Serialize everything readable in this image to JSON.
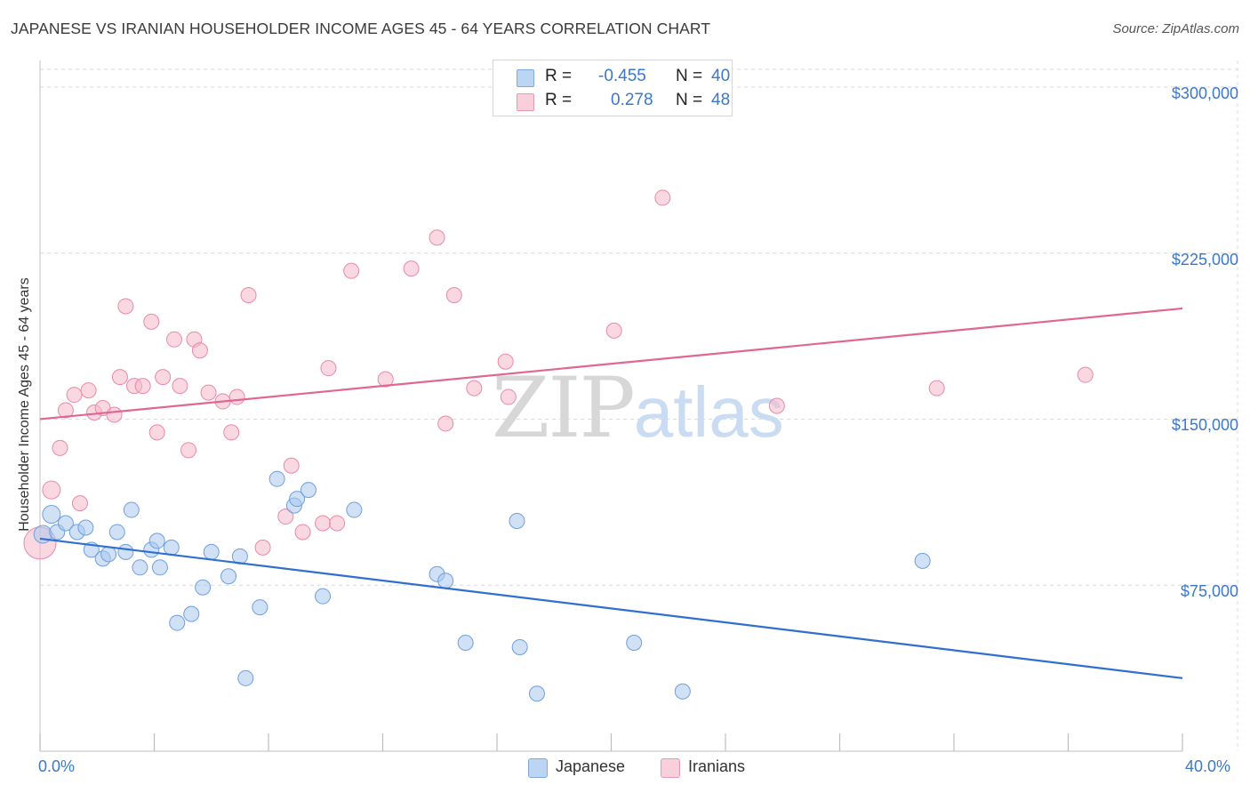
{
  "header": {
    "title": "JAPANESE VS IRANIAN HOUSEHOLDER INCOME AGES 45 - 64 YEARS CORRELATION CHART",
    "source": "Source: ZipAtlas.com"
  },
  "watermark": {
    "zip": "ZIP",
    "atlas": "atlas"
  },
  "legend": {
    "japanese": {
      "r_label": "R = ",
      "r_value": "-0.455",
      "n_label": "N = ",
      "n_value": "40",
      "color": "#a9c8ef"
    },
    "iranians": {
      "r_label": "R = ",
      "r_value": "0.278",
      "n_label": "N = ",
      "n_value": "48",
      "color": "#f5b8cb"
    }
  },
  "bottom_legend": {
    "japanese": "Japanese",
    "iranians": "Iranians"
  },
  "colors": {
    "japanese_fill": "#a9c8ef",
    "japanese_stroke": "#6f9fdc",
    "japanese_line": "#2f6fd0",
    "iranians_fill": "#f5b8cb",
    "iranians_stroke": "#e88aa7",
    "iranians_line": "#e0678f",
    "axis_text": "#3a78c9",
    "grid": "#d9d9d9"
  },
  "chart_data": {
    "type": "scatter",
    "title": "JAPANESE VS IRANIAN HOUSEHOLDER INCOME AGES 45 - 64 YEARS CORRELATION CHART",
    "xlabel": "",
    "ylabel": "Householder Income Ages 45 - 64 years",
    "x_unit": "%",
    "xlim": [
      0,
      40
    ],
    "ylim": [
      0,
      308000
    ],
    "x_tick_labels": [
      "0.0%",
      "40.0%"
    ],
    "y_ticks": [
      75000,
      150000,
      225000,
      300000
    ],
    "y_tick_labels": [
      "$75,000",
      "$150,000",
      "$225,000",
      "$300,000"
    ],
    "grid": true,
    "legend_position": "top-center",
    "series": [
      {
        "name": "Japanese",
        "r": -0.455,
        "n": 40,
        "trend": {
          "x": [
            0,
            40
          ],
          "y": [
            96000,
            33000
          ]
        },
        "points": [
          [
            0.1,
            98000
          ],
          [
            0.4,
            107000
          ],
          [
            0.6,
            99000
          ],
          [
            0.9,
            103000
          ],
          [
            1.3,
            99000
          ],
          [
            1.6,
            101000
          ],
          [
            1.8,
            91000
          ],
          [
            2.2,
            87000
          ],
          [
            2.4,
            89000
          ],
          [
            2.7,
            99000
          ],
          [
            3.0,
            90000
          ],
          [
            3.2,
            109000
          ],
          [
            3.5,
            83000
          ],
          [
            3.9,
            91000
          ],
          [
            4.1,
            95000
          ],
          [
            4.2,
            83000
          ],
          [
            4.6,
            92000
          ],
          [
            4.8,
            58000
          ],
          [
            5.3,
            62000
          ],
          [
            5.7,
            74000
          ],
          [
            6.0,
            90000
          ],
          [
            6.6,
            79000
          ],
          [
            7.0,
            88000
          ],
          [
            7.2,
            33000
          ],
          [
            7.7,
            65000
          ],
          [
            8.3,
            123000
          ],
          [
            8.9,
            111000
          ],
          [
            9.0,
            114000
          ],
          [
            9.4,
            118000
          ],
          [
            9.9,
            70000
          ],
          [
            11.0,
            109000
          ],
          [
            13.9,
            80000
          ],
          [
            14.2,
            77000
          ],
          [
            14.9,
            49000
          ],
          [
            16.7,
            104000
          ],
          [
            16.8,
            47000
          ],
          [
            17.4,
            26000
          ],
          [
            20.8,
            49000
          ],
          [
            22.5,
            27000
          ],
          [
            30.9,
            86000
          ]
        ]
      },
      {
        "name": "Iranians",
        "r": 0.278,
        "n": 48,
        "trend": {
          "x": [
            0,
            40
          ],
          "y": [
            150000,
            200000
          ]
        },
        "points": [
          [
            0.0,
            94000
          ],
          [
            0.4,
            118000
          ],
          [
            0.7,
            137000
          ],
          [
            0.9,
            154000
          ],
          [
            1.2,
            161000
          ],
          [
            1.4,
            112000
          ],
          [
            1.7,
            163000
          ],
          [
            1.9,
            153000
          ],
          [
            2.2,
            155000
          ],
          [
            2.6,
            152000
          ],
          [
            2.8,
            169000
          ],
          [
            3.0,
            201000
          ],
          [
            3.3,
            165000
          ],
          [
            3.6,
            165000
          ],
          [
            3.9,
            194000
          ],
          [
            4.1,
            144000
          ],
          [
            4.3,
            169000
          ],
          [
            4.7,
            186000
          ],
          [
            4.9,
            165000
          ],
          [
            5.2,
            136000
          ],
          [
            5.4,
            186000
          ],
          [
            5.6,
            181000
          ],
          [
            5.9,
            162000
          ],
          [
            6.4,
            158000
          ],
          [
            6.7,
            144000
          ],
          [
            6.9,
            160000
          ],
          [
            7.3,
            206000
          ],
          [
            7.8,
            92000
          ],
          [
            8.6,
            106000
          ],
          [
            8.8,
            129000
          ],
          [
            9.2,
            99000
          ],
          [
            9.9,
            103000
          ],
          [
            10.1,
            173000
          ],
          [
            10.4,
            103000
          ],
          [
            10.9,
            217000
          ],
          [
            12.1,
            168000
          ],
          [
            13.0,
            218000
          ],
          [
            13.9,
            232000
          ],
          [
            14.2,
            148000
          ],
          [
            14.5,
            206000
          ],
          [
            15.2,
            164000
          ],
          [
            16.3,
            176000
          ],
          [
            16.4,
            160000
          ],
          [
            20.1,
            190000
          ],
          [
            21.8,
            250000
          ],
          [
            25.8,
            156000
          ],
          [
            31.4,
            164000
          ],
          [
            36.6,
            170000
          ]
        ]
      }
    ]
  }
}
